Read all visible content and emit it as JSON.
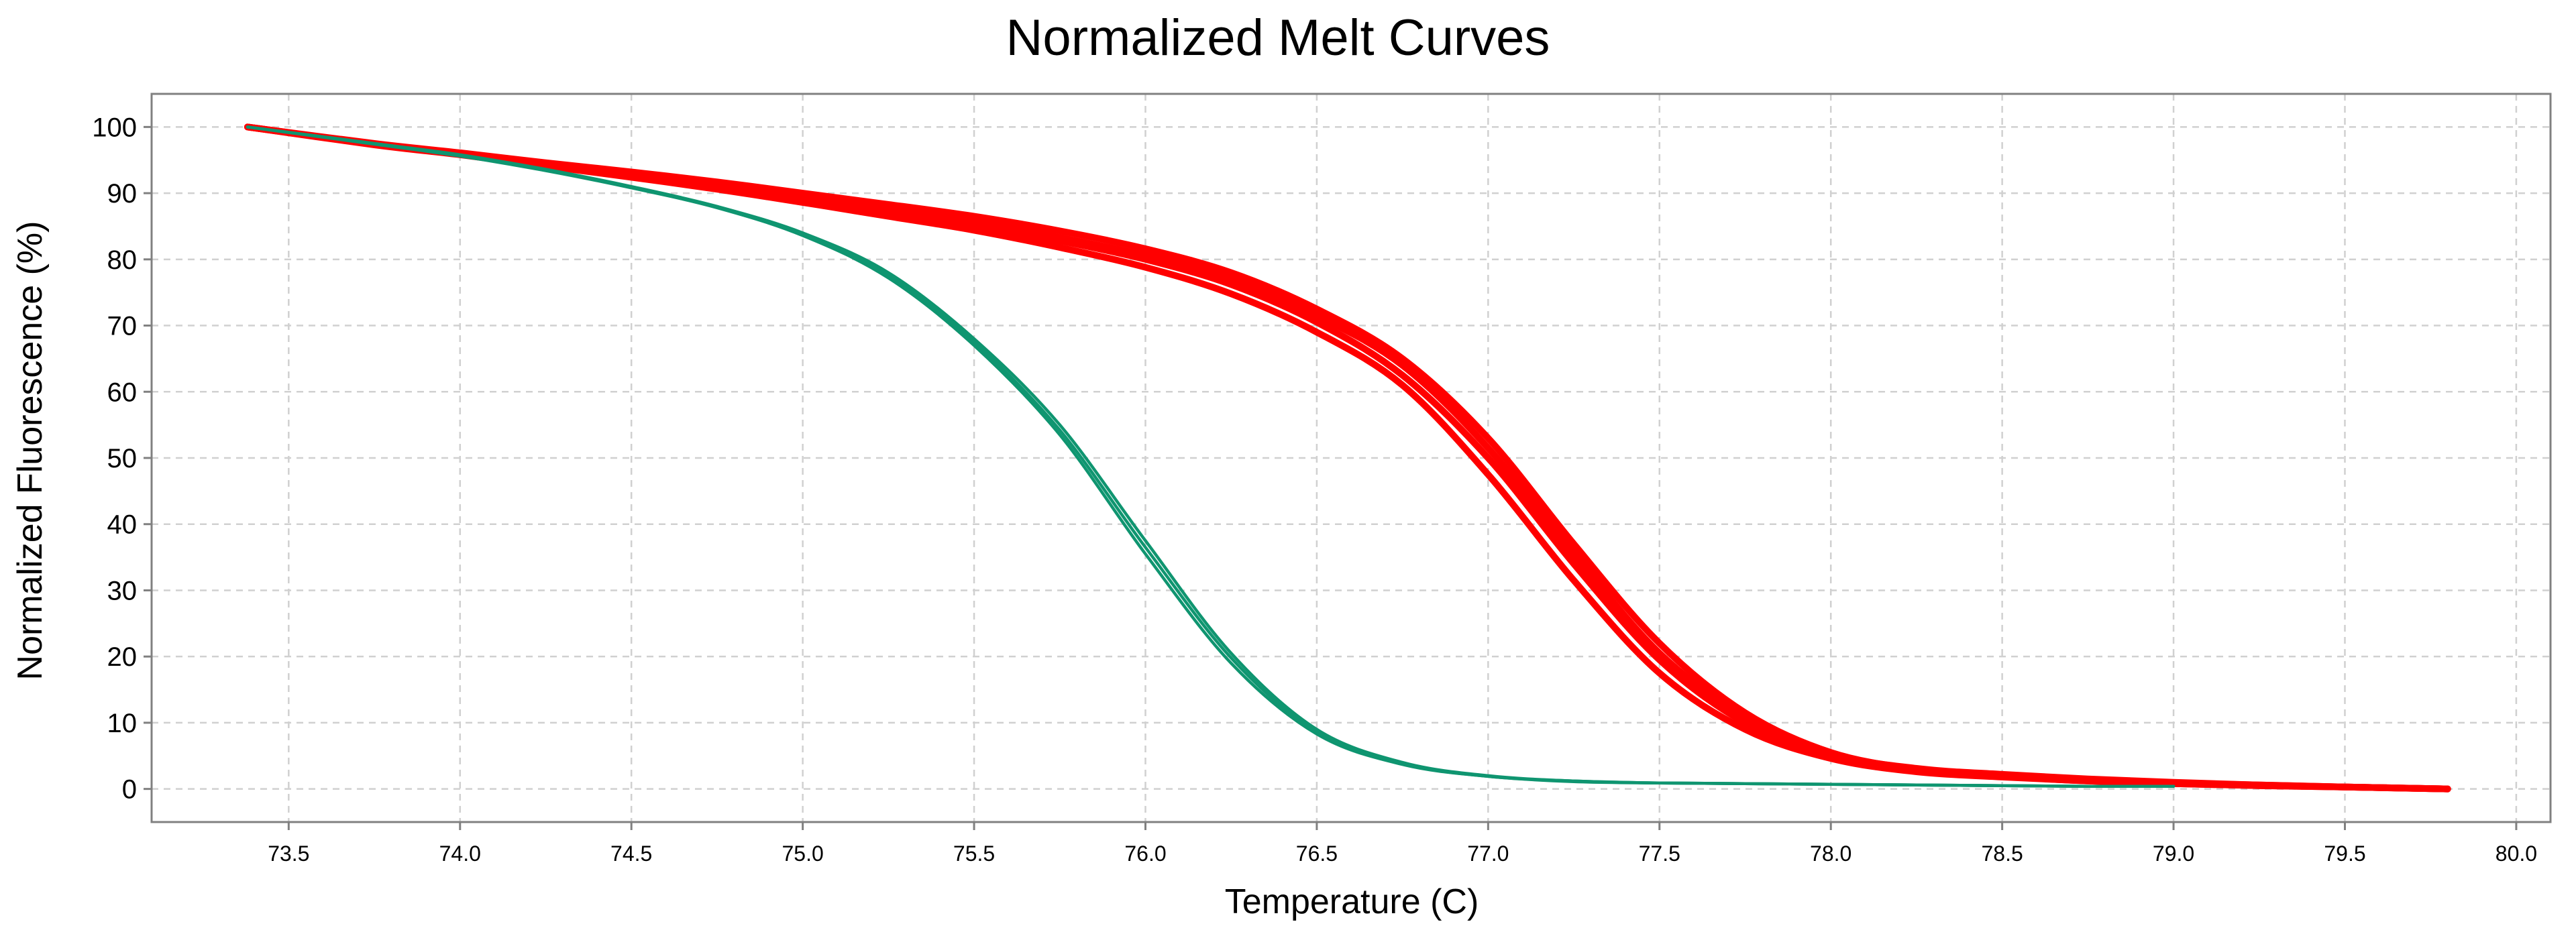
{
  "chart_data": {
    "type": "line",
    "title": "Normalized Melt Curves",
    "xlabel": "Temperature (C)",
    "ylabel": "Normalized Fluorescence (%)",
    "xlim": [
      73.1,
      80.1
    ],
    "ylim": [
      -5,
      105
    ],
    "x_ticks": [
      "73.5",
      "74.0",
      "74.5",
      "75.0",
      "75.5",
      "76.0",
      "76.5",
      "77.0",
      "77.5",
      "78.0",
      "78.5",
      "79.0",
      "79.5",
      "80.0"
    ],
    "y_ticks": [
      "0",
      "10",
      "20",
      "30",
      "40",
      "50",
      "60",
      "70",
      "80",
      "90",
      "100"
    ],
    "grid": true,
    "legend": "none",
    "colors": {
      "red": "#ff0000",
      "green": "#0f9570",
      "axis": "#808080",
      "grid": "#d0d0d0"
    },
    "series": [
      {
        "color": "#ff0000",
        "x": [
          73.38,
          73.75,
          74.0,
          74.25,
          74.5,
          74.75,
          75.0,
          75.25,
          75.5,
          75.75,
          76.0,
          76.25,
          76.5,
          76.75,
          77.0,
          77.25,
          77.5,
          77.75,
          78.0,
          78.25,
          78.5,
          78.75,
          79.0,
          79.25,
          79.5,
          79.8
        ],
        "y": [
          100,
          97.5,
          96.1,
          94.6,
          93.2,
          91.7,
          90.0,
          88.3,
          86.5,
          84.3,
          81.6,
          78.0,
          72.5,
          65.0,
          53.0,
          37.0,
          22.0,
          11.5,
          5.5,
          3.0,
          2.0,
          1.3,
          0.9,
          0.6,
          0.3,
          0.0
        ]
      },
      {
        "color": "#ff0000",
        "x": [
          73.38,
          73.75,
          74.0,
          74.25,
          74.5,
          74.75,
          75.0,
          75.25,
          75.5,
          75.75,
          76.0,
          76.25,
          76.5,
          76.75,
          77.0,
          77.25,
          77.5,
          77.75,
          78.0,
          78.25,
          78.5,
          78.75,
          79.0,
          79.25,
          79.5,
          79.8
        ],
        "y": [
          100,
          97.4,
          95.9,
          94.3,
          92.7,
          91.0,
          89.2,
          87.2,
          85.2,
          82.8,
          80.0,
          76.2,
          70.5,
          62.5,
          50.0,
          34.0,
          19.5,
          10.0,
          5.0,
          2.8,
          1.9,
          1.2,
          0.8,
          0.5,
          0.3,
          0.0
        ]
      },
      {
        "color": "#ff0000",
        "x": [
          73.38,
          73.75,
          74.0,
          74.25,
          74.5,
          74.75,
          75.0,
          75.25,
          75.5,
          75.75,
          76.0,
          76.25,
          76.5,
          76.75,
          77.0,
          77.25,
          77.5,
          77.75,
          78.0,
          78.25,
          78.5,
          78.75,
          79.0,
          79.25,
          79.5,
          79.8
        ],
        "y": [
          100,
          97.3,
          95.8,
          94.1,
          92.4,
          90.6,
          88.6,
          86.5,
          84.4,
          81.8,
          78.8,
          74.8,
          69.0,
          61.0,
          47.5,
          31.5,
          17.5,
          9.0,
          4.6,
          2.6,
          1.8,
          1.2,
          0.8,
          0.5,
          0.3,
          0.0
        ]
      },
      {
        "color": "#ff0000",
        "x": [
          73.38,
          73.75,
          74.0,
          74.25,
          74.5,
          74.75,
          75.0,
          75.25,
          75.5,
          75.75,
          76.0,
          76.25,
          76.5,
          76.75,
          77.0,
          77.25,
          77.5,
          77.75,
          78.0,
          78.25,
          78.5,
          78.75,
          79.0,
          79.25,
          79.5,
          79.8
        ],
        "y": [
          100,
          97.4,
          96.0,
          94.5,
          92.9,
          91.3,
          89.5,
          87.6,
          85.6,
          83.3,
          80.6,
          77.0,
          71.5,
          64.0,
          51.5,
          35.5,
          20.5,
          10.8,
          5.3,
          3.1,
          2.2,
          1.5,
          1.0,
          0.6,
          0.3,
          0.0
        ]
      },
      {
        "color": "#0f9570",
        "x": [
          73.38,
          73.75,
          74.0,
          74.25,
          74.5,
          74.75,
          75.0,
          75.25,
          75.5,
          75.75,
          76.0,
          76.25,
          76.5,
          76.75,
          77.0,
          77.25,
          77.5,
          77.75,
          78.0,
          78.25,
          78.5,
          78.75,
          79.0
        ],
        "y": [
          100,
          97.5,
          95.8,
          93.6,
          91.0,
          88.0,
          84.0,
          78.0,
          68.0,
          55.0,
          37.5,
          20.5,
          9.0,
          4.0,
          2.0,
          1.2,
          0.9,
          0.8,
          0.7,
          0.6,
          0.5,
          0.4,
          0.4
        ]
      },
      {
        "color": "#0f9570",
        "x": [
          73.38,
          73.75,
          74.0,
          74.25,
          74.5,
          74.75,
          75.0,
          75.25,
          75.5,
          75.75,
          76.0,
          76.25,
          76.5,
          76.75,
          77.0,
          77.25,
          77.5,
          77.75,
          78.0,
          78.25,
          78.5,
          78.75,
          79.0
        ],
        "y": [
          100,
          97.4,
          95.6,
          93.4,
          90.8,
          87.8,
          83.6,
          77.2,
          67.0,
          53.5,
          35.5,
          19.0,
          8.3,
          3.7,
          1.9,
          1.1,
          0.9,
          0.8,
          0.7,
          0.6,
          0.5,
          0.4,
          0.4
        ]
      },
      {
        "color": "#0f9570",
        "x": [
          73.38,
          73.75,
          74.0,
          74.25,
          74.5,
          74.75,
          75.0,
          75.25,
          75.5,
          75.75,
          76.0,
          76.25,
          76.5,
          76.75,
          77.0,
          77.25,
          77.5,
          77.75,
          78.0,
          78.25,
          78.5,
          78.75,
          79.0
        ],
        "y": [
          100,
          97.5,
          95.7,
          93.5,
          90.9,
          87.9,
          83.8,
          77.6,
          67.5,
          54.2,
          36.5,
          19.8,
          8.6,
          3.8,
          1.9,
          1.2,
          0.9,
          0.8,
          0.7,
          0.6,
          0.5,
          0.4,
          0.4
        ]
      }
    ]
  }
}
